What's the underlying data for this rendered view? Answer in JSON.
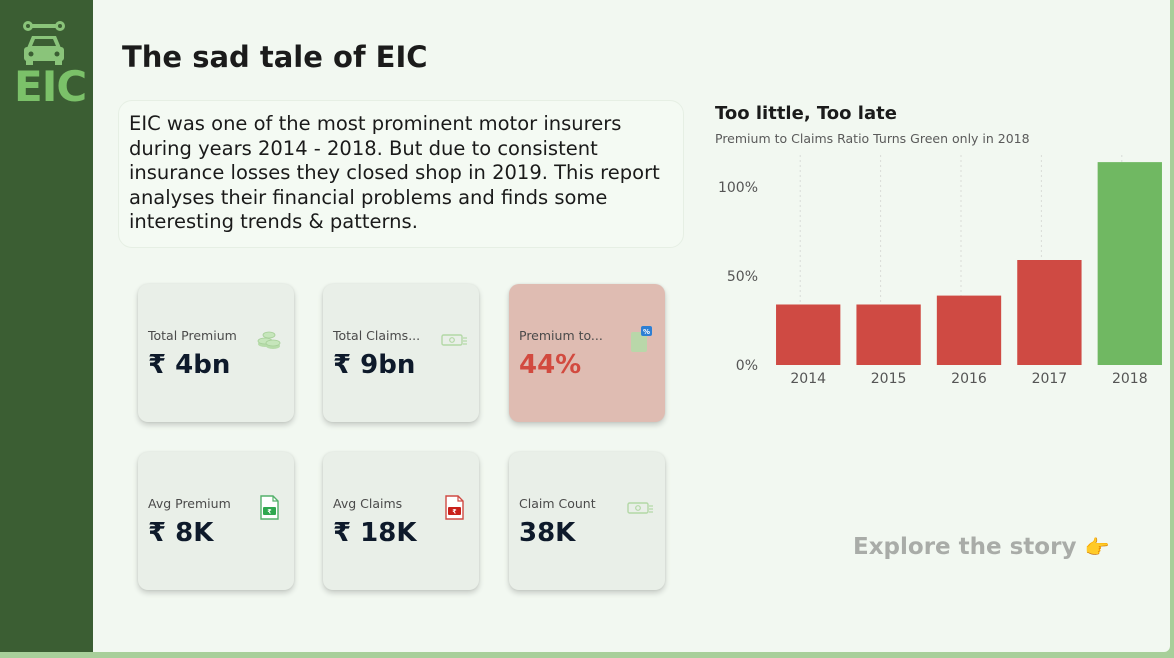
{
  "sidebar": {
    "logo_text": "EIC"
  },
  "header": {
    "title": "The sad tale of EIC"
  },
  "intro": {
    "text": "EIC was one of the most prominent motor insurers during years 2014 - 2018. But due to consistent insurance losses they closed shop in 2019. This report analyses their financial problems and finds some interesting trends & patterns."
  },
  "cards": [
    {
      "label": "Total Premium",
      "value": "₹ 4bn",
      "icon": "coins-icon"
    },
    {
      "label": "Total Claims...",
      "value": "₹ 9bn",
      "icon": "cash-icon"
    },
    {
      "label": "Premium to...",
      "value": "44%",
      "icon": "percent-doc-icon"
    },
    {
      "label": "Avg Premium",
      "value": "₹ 8K",
      "icon": "green-bill-icon"
    },
    {
      "label": "Avg Claims",
      "value": "₹ 18K",
      "icon": "red-bill-icon"
    },
    {
      "label": "Claim Count",
      "value": "38K",
      "icon": "cash-icon"
    }
  ],
  "chart": {
    "title": "Too little, Too late",
    "subtitle": "Premium to Claims Ratio Turns Green only in 2018"
  },
  "chart_data": {
    "type": "bar",
    "title": "Too little, Too late",
    "subtitle": "Premium to Claims Ratio Turns Green only in 2018",
    "categories": [
      "2014",
      "2015",
      "2016",
      "2017",
      "2018"
    ],
    "values": [
      34,
      34,
      39,
      59,
      114
    ],
    "colors": [
      "#cf4a43",
      "#cf4a43",
      "#cf4a43",
      "#cf4a43",
      "#70b862"
    ],
    "y_ticks": [
      0,
      50,
      100
    ],
    "y_tick_labels": [
      "0%",
      "50%",
      "100%"
    ],
    "ylim": [
      0,
      118
    ],
    "grid": "vertical dotted",
    "legend": "none"
  },
  "cta": {
    "label": "Explore the story",
    "hand": "👉"
  },
  "colors": {
    "sidebar": "#3b5e33",
    "background": "#f2f8f1",
    "bad": "#cf4a43",
    "good": "#70b862"
  }
}
